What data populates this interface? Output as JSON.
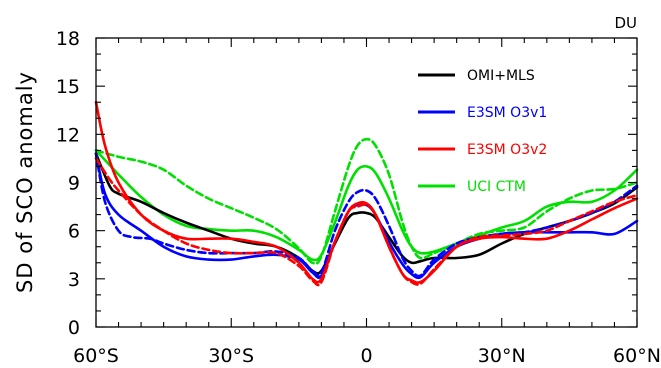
{
  "chart_data": {
    "type": "line",
    "ylabel": "SD of SCO anomaly",
    "unit_label": "DU",
    "x_ticks": [
      {
        "value": -60,
        "label": "60°S"
      },
      {
        "value": -30,
        "label": "30°S"
      },
      {
        "value": 0,
        "label": "0"
      },
      {
        "value": 30,
        "label": "30°N"
      },
      {
        "value": 60,
        "label": "60°N"
      }
    ],
    "y_ticks": [
      0,
      3,
      6,
      9,
      12,
      15,
      18
    ],
    "xlim": [
      -60,
      60
    ],
    "ylim": [
      0,
      18
    ],
    "grid": false,
    "legend_position": "upper-right",
    "legend": [
      {
        "label": "OMI+MLS",
        "color": "#000000",
        "dash": "solid"
      },
      {
        "label": "E3SM O3v1",
        "color": "#0000ff",
        "dash": "solid"
      },
      {
        "label": "E3SM O3v2",
        "color": "#ff0000",
        "dash": "solid"
      },
      {
        "label": "UCI CTM",
        "color": "#00e000",
        "dash": "solid"
      }
    ],
    "series": [
      {
        "name": "UCI CTM",
        "color": "#00e000",
        "dash": "solid",
        "points": [
          [
            -60,
            11.0
          ],
          [
            -55,
            9.5
          ],
          [
            -50,
            8.1
          ],
          [
            -45,
            7.0
          ],
          [
            -40,
            6.3
          ],
          [
            -35,
            6.1
          ],
          [
            -30,
            6.0
          ],
          [
            -25,
            6.0
          ],
          [
            -20,
            5.6
          ],
          [
            -15,
            4.8
          ],
          [
            -12,
            4.2
          ],
          [
            -10,
            4.5
          ],
          [
            -7,
            6.5
          ],
          [
            -4,
            8.8
          ],
          [
            -2,
            9.8
          ],
          [
            0,
            10.0
          ],
          [
            2,
            9.6
          ],
          [
            5,
            8.0
          ],
          [
            8,
            6.0
          ],
          [
            10,
            5.0
          ],
          [
            12,
            4.6
          ],
          [
            15,
            4.7
          ],
          [
            20,
            5.2
          ],
          [
            25,
            5.7
          ],
          [
            30,
            6.2
          ],
          [
            35,
            6.6
          ],
          [
            40,
            7.5
          ],
          [
            45,
            7.8
          ],
          [
            50,
            7.8
          ],
          [
            55,
            8.5
          ],
          [
            60,
            9.8
          ]
        ]
      },
      {
        "name": "UCI CTM (dashed)",
        "color": "#00e000",
        "dash": "dashed",
        "points": [
          [
            -60,
            11.0
          ],
          [
            -55,
            10.6
          ],
          [
            -50,
            10.3
          ],
          [
            -45,
            9.8
          ],
          [
            -40,
            8.8
          ],
          [
            -35,
            8.0
          ],
          [
            -30,
            7.4
          ],
          [
            -25,
            6.8
          ],
          [
            -20,
            6.1
          ],
          [
            -15,
            4.9
          ],
          [
            -12,
            4.0
          ],
          [
            -10,
            4.4
          ],
          [
            -7,
            7.2
          ],
          [
            -4,
            10.0
          ],
          [
            -2,
            11.3
          ],
          [
            0,
            11.7
          ],
          [
            2,
            11.3
          ],
          [
            5,
            9.5
          ],
          [
            8,
            6.5
          ],
          [
            10,
            5.0
          ],
          [
            12,
            4.3
          ],
          [
            15,
            4.6
          ],
          [
            20,
            5.2
          ],
          [
            25,
            5.8
          ],
          [
            30,
            6.0
          ],
          [
            35,
            6.2
          ],
          [
            40,
            7.2
          ],
          [
            45,
            8.0
          ],
          [
            50,
            8.5
          ],
          [
            55,
            8.6
          ],
          [
            60,
            9.0
          ]
        ]
      },
      {
        "name": "OMI+MLS",
        "color": "#000000",
        "dash": "solid",
        "points": [
          [
            -60,
            10.8
          ],
          [
            -57,
            8.8
          ],
          [
            -55,
            8.3
          ],
          [
            -50,
            7.8
          ],
          [
            -45,
            7.1
          ],
          [
            -40,
            6.5
          ],
          [
            -35,
            6.0
          ],
          [
            -30,
            5.5
          ],
          [
            -25,
            5.2
          ],
          [
            -20,
            5.0
          ],
          [
            -15,
            4.3
          ],
          [
            -12,
            3.5
          ],
          [
            -10,
            3.5
          ],
          [
            -7,
            5.2
          ],
          [
            -4,
            6.8
          ],
          [
            -2,
            7.1
          ],
          [
            0,
            7.1
          ],
          [
            2,
            6.8
          ],
          [
            5,
            5.6
          ],
          [
            8,
            4.4
          ],
          [
            10,
            4.0
          ],
          [
            12,
            4.1
          ],
          [
            15,
            4.3
          ],
          [
            20,
            4.3
          ],
          [
            25,
            4.5
          ],
          [
            30,
            5.2
          ],
          [
            35,
            5.8
          ],
          [
            40,
            6.2
          ],
          [
            45,
            6.6
          ],
          [
            50,
            7.1
          ],
          [
            55,
            7.7
          ],
          [
            60,
            8.7
          ]
        ]
      },
      {
        "name": "E3SM O3v1",
        "color": "#0000ff",
        "dash": "solid",
        "points": [
          [
            -60,
            10.8
          ],
          [
            -58,
            8.3
          ],
          [
            -55,
            7.0
          ],
          [
            -50,
            6.0
          ],
          [
            -45,
            5.0
          ],
          [
            -40,
            4.4
          ],
          [
            -35,
            4.2
          ],
          [
            -30,
            4.2
          ],
          [
            -25,
            4.4
          ],
          [
            -20,
            4.5
          ],
          [
            -15,
            4.2
          ],
          [
            -12,
            3.4
          ],
          [
            -10,
            3.2
          ],
          [
            -7,
            5.3
          ],
          [
            -4,
            7.2
          ],
          [
            -2,
            7.6
          ],
          [
            0,
            7.6
          ],
          [
            2,
            7.0
          ],
          [
            5,
            5.3
          ],
          [
            8,
            3.9
          ],
          [
            10,
            3.3
          ],
          [
            12,
            3.1
          ],
          [
            15,
            4.0
          ],
          [
            20,
            5.0
          ],
          [
            25,
            5.5
          ],
          [
            30,
            5.8
          ],
          [
            35,
            5.9
          ],
          [
            40,
            5.9
          ],
          [
            45,
            5.9
          ],
          [
            50,
            5.9
          ],
          [
            55,
            5.8
          ],
          [
            60,
            6.6
          ]
        ]
      },
      {
        "name": "E3SM O3v1 (dashed)",
        "color": "#0000ff",
        "dash": "dashed",
        "points": [
          [
            -60,
            10.8
          ],
          [
            -58,
            7.8
          ],
          [
            -55,
            6.0
          ],
          [
            -52,
            5.6
          ],
          [
            -48,
            5.5
          ],
          [
            -45,
            5.2
          ],
          [
            -40,
            4.8
          ],
          [
            -35,
            4.6
          ],
          [
            -30,
            4.6
          ],
          [
            -25,
            4.6
          ],
          [
            -20,
            4.7
          ],
          [
            -15,
            4.3
          ],
          [
            -12,
            3.5
          ],
          [
            -10,
            3.4
          ],
          [
            -7,
            6.0
          ],
          [
            -4,
            7.8
          ],
          [
            -2,
            8.4
          ],
          [
            0,
            8.5
          ],
          [
            2,
            8.0
          ],
          [
            5,
            6.3
          ],
          [
            8,
            4.3
          ],
          [
            10,
            3.5
          ],
          [
            12,
            3.2
          ],
          [
            15,
            4.2
          ],
          [
            20,
            5.2
          ],
          [
            25,
            5.6
          ],
          [
            30,
            5.8
          ],
          [
            35,
            5.9
          ],
          [
            40,
            6.2
          ],
          [
            45,
            6.6
          ],
          [
            50,
            7.1
          ],
          [
            55,
            7.8
          ],
          [
            60,
            8.8
          ]
        ]
      },
      {
        "name": "E3SM O3v2",
        "color": "#ff0000",
        "dash": "solid",
        "points": [
          [
            -60,
            14.0
          ],
          [
            -58,
            11.3
          ],
          [
            -55,
            9.0
          ],
          [
            -50,
            7.0
          ],
          [
            -45,
            6.0
          ],
          [
            -40,
            5.5
          ],
          [
            -35,
            5.5
          ],
          [
            -30,
            5.5
          ],
          [
            -25,
            5.3
          ],
          [
            -20,
            5.0
          ],
          [
            -15,
            4.0
          ],
          [
            -12,
            3.0
          ],
          [
            -10,
            3.0
          ],
          [
            -7,
            5.3
          ],
          [
            -4,
            7.2
          ],
          [
            -2,
            7.7
          ],
          [
            0,
            7.7
          ],
          [
            2,
            7.0
          ],
          [
            5,
            5.0
          ],
          [
            8,
            3.3
          ],
          [
            10,
            2.9
          ],
          [
            12,
            2.8
          ],
          [
            15,
            3.5
          ],
          [
            20,
            5.0
          ],
          [
            25,
            5.5
          ],
          [
            30,
            5.6
          ],
          [
            35,
            5.5
          ],
          [
            40,
            5.5
          ],
          [
            45,
            6.0
          ],
          [
            50,
            6.7
          ],
          [
            55,
            7.4
          ],
          [
            60,
            8.0
          ]
        ]
      },
      {
        "name": "E3SM O3v2 (dashed)",
        "color": "#ff0000",
        "dash": "dashed",
        "points": [
          [
            -60,
            10.5
          ],
          [
            -57,
            9.2
          ],
          [
            -55,
            8.5
          ],
          [
            -50,
            7.0
          ],
          [
            -45,
            6.0
          ],
          [
            -40,
            5.2
          ],
          [
            -35,
            4.8
          ],
          [
            -30,
            4.6
          ],
          [
            -25,
            4.6
          ],
          [
            -20,
            4.6
          ],
          [
            -15,
            3.8
          ],
          [
            -12,
            2.9
          ],
          [
            -10,
            2.8
          ],
          [
            -7,
            5.3
          ],
          [
            -4,
            7.2
          ],
          [
            -2,
            7.5
          ],
          [
            0,
            7.6
          ],
          [
            2,
            7.0
          ],
          [
            5,
            5.0
          ],
          [
            8,
            3.3
          ],
          [
            10,
            2.8
          ],
          [
            12,
            2.7
          ],
          [
            15,
            3.6
          ],
          [
            20,
            5.0
          ],
          [
            25,
            5.6
          ],
          [
            30,
            5.7
          ],
          [
            35,
            5.8
          ],
          [
            40,
            6.0
          ],
          [
            45,
            6.6
          ],
          [
            50,
            7.2
          ],
          [
            55,
            7.8
          ],
          [
            60,
            8.2
          ]
        ]
      }
    ]
  }
}
